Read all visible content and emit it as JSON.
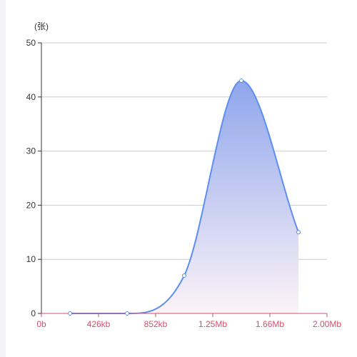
{
  "chart_data": {
    "type": "area",
    "ylabel": "(张)",
    "ylim": [
      0,
      50
    ],
    "y_ticks": [
      "0",
      "10",
      "20",
      "30",
      "40",
      "50"
    ],
    "xlim": [
      0,
      5
    ],
    "x_ticks": [
      "0b",
      "426kb",
      "852kb",
      "1.25Mb",
      "1.66Mb",
      "2.00Mb"
    ],
    "grid": true,
    "series": [
      {
        "x": [
          0.5,
          1.5,
          2.5,
          3.5,
          4.5
        ],
        "values": [
          0,
          0,
          7,
          43,
          15
        ]
      }
    ]
  },
  "colors": {
    "line": "#5b8ff0",
    "area_top": "#8fa6ec",
    "area_bottom": "#fdf3f7",
    "x_axis": "#d1516e",
    "grid": "#cccccc"
  }
}
